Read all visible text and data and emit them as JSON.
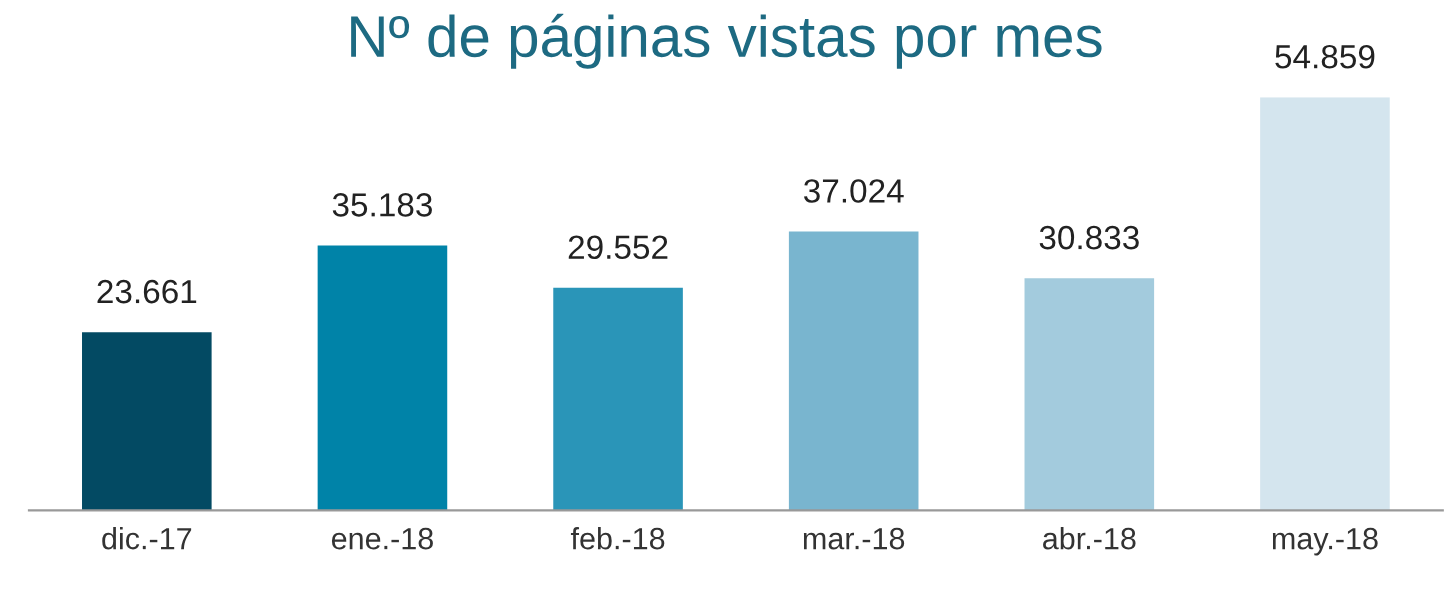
{
  "chart_data": {
    "type": "bar",
    "title": "Nº de páginas vistas por mes",
    "categories": [
      "dic.-17",
      "ene.-18",
      "feb.-18",
      "mar.-18",
      "abr.-18",
      "may.-18"
    ],
    "values": [
      23661,
      35183,
      29552,
      37024,
      30833,
      54859
    ],
    "value_labels": [
      "23.661",
      "35.183",
      "29.552",
      "37.024",
      "30.833",
      "54.859"
    ],
    "colors": [
      "#034a63",
      "#0083a8",
      "#2a95b8",
      "#79b5cf",
      "#a3cbdd",
      "#d4e5ee"
    ],
    "grid": false,
    "legend": false
  }
}
